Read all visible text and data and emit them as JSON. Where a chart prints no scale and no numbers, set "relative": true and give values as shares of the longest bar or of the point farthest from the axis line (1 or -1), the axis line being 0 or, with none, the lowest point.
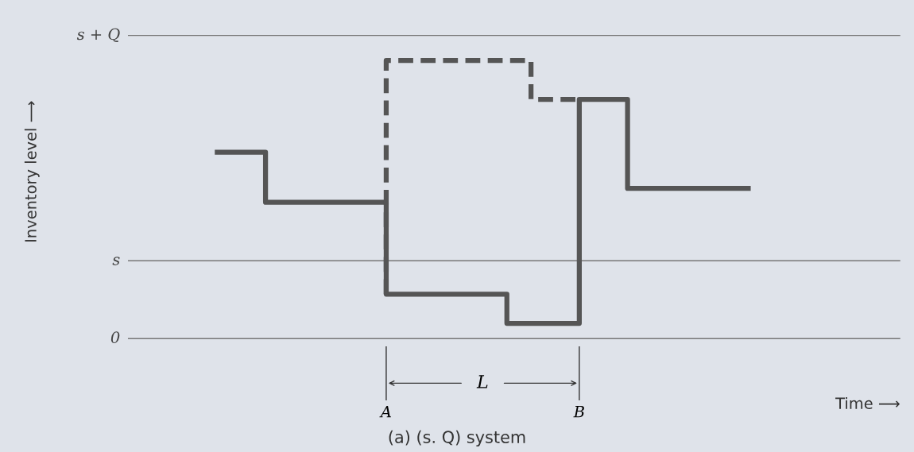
{
  "chart_data": {
    "type": "step",
    "relative": true,
    "title": "(a) (s. Q) system",
    "xlabel": "Time ⟶",
    "categories": [
      null,
      null,
      null,
      null,
      null,
      null,
      null,
      "A",
      null,
      null,
      null,
      null,
      null,
      null,
      null,
      "B",
      null,
      null,
      null,
      null,
      null,
      null,
      null
    ],
    "series": [
      {
        "color": "#555555",
        "line_style": "solid",
        "values": [
          0.67,
          0.67,
          0.67,
          0.49,
          0.49,
          0.49,
          0.49,
          0.49,
          0.16,
          0.16,
          0.16,
          0.16,
          0.16,
          0.055,
          0.055,
          0.055,
          0.86,
          0.86,
          0.54,
          0.54,
          0.54,
          0.54,
          0.54
        ]
      },
      {
        "color": "#555555",
        "line_style": "dashed",
        "values": [
          null,
          null,
          null,
          null,
          null,
          null,
          null,
          0.16,
          1.0,
          1.0,
          1.0,
          1.0,
          1.0,
          1.0,
          0.86,
          0.86,
          null,
          null,
          null,
          null,
          null,
          null,
          null
        ]
      }
    ],
    "ref_lines": [
      {
        "axis": "y",
        "value": 0,
        "label": "0",
        "color": "#777777"
      },
      {
        "axis": "y",
        "value": 0.28,
        "label": "s",
        "color": "#777777"
      },
      {
        "axis": "y",
        "value": 1.09,
        "label": "s + Q",
        "color": "#777777"
      }
    ],
    "annotations": [
      "L",
      "Inventory level ⟶"
    ],
    "grid": false,
    "legend": false
  }
}
